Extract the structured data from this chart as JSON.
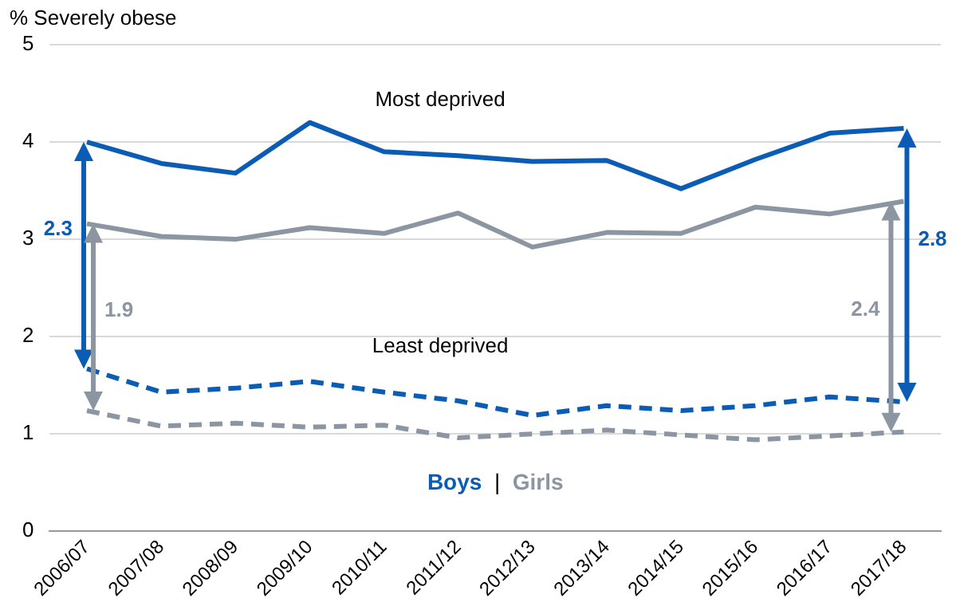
{
  "chart_data": {
    "type": "line",
    "ylabel": "% Severely obese",
    "categories": [
      "2006/07",
      "2007/08",
      "2008/09",
      "2009/10",
      "2010/11",
      "2011/12",
      "2012/13",
      "2013/14",
      "2014/15",
      "2015/16",
      "2016/17",
      "2017/18"
    ],
    "series": [
      {
        "name": "Boys",
        "color": "#0b5cb4",
        "line_style": "solid",
        "values": [
          4.0,
          3.78,
          3.68,
          4.2,
          3.9,
          3.86,
          3.8,
          3.81,
          3.52,
          3.82,
          4.09,
          4.14
        ]
      },
      {
        "name": "Girls",
        "color": "#8c96a2",
        "line_style": "solid",
        "values": [
          3.16,
          3.03,
          3.0,
          3.12,
          3.06,
          3.27,
          2.92,
          3.07,
          3.06,
          3.33,
          3.26,
          3.39
        ]
      },
      {
        "color": "#0b5cb4",
        "line_style": "dashed",
        "values": [
          1.67,
          1.43,
          1.47,
          1.54,
          1.43,
          1.34,
          1.19,
          1.29,
          1.24,
          1.29,
          1.38,
          1.33
        ]
      },
      {
        "color": "#8c96a2",
        "line_style": "dashed",
        "values": [
          1.24,
          1.08,
          1.11,
          1.07,
          1.09,
          0.96,
          1.0,
          1.04,
          0.99,
          0.94,
          0.98,
          1.02
        ]
      }
    ],
    "annotations": [
      "Most deprived",
      "Least deprived",
      "2.3",
      "1.9",
      "2.8",
      "2.4",
      "|"
    ],
    "ylim": [
      0,
      5
    ],
    "yticks": [
      0,
      1,
      2,
      3,
      4,
      5
    ],
    "grid": "y",
    "legend": "bottom",
    "marker": "none"
  }
}
